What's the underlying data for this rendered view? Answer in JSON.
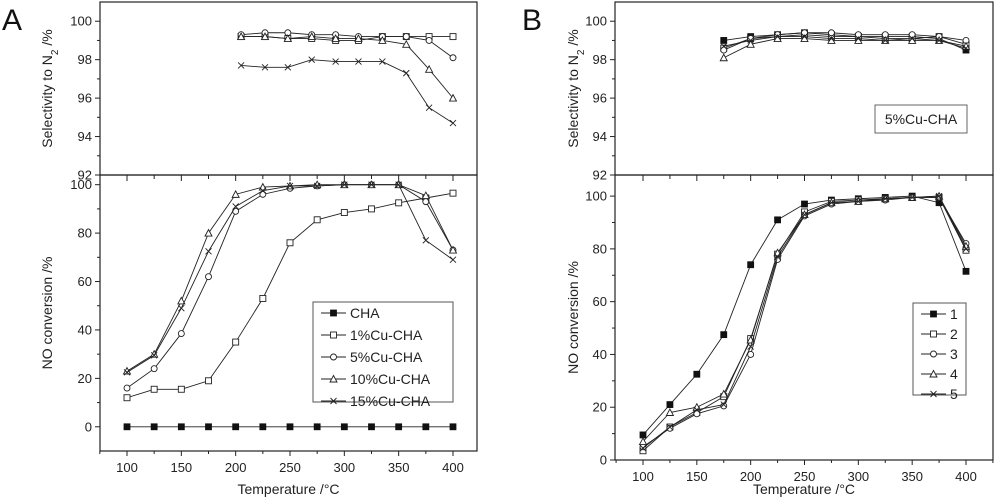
{
  "chart_data": [
    {
      "panel": "A",
      "type": "line",
      "subplots": [
        {
          "position": "top",
          "ylabel": "Selectivity to N2 /%",
          "ylim": [
            92,
            101
          ],
          "yticks": [
            92,
            94,
            96,
            98,
            100
          ],
          "x": [
            205,
            227,
            248,
            270,
            292,
            313,
            335,
            357,
            378,
            400
          ],
          "series": [
            {
              "name": "1%Cu-CHA",
              "marker": "square-open",
              "values": [
                99.2,
                99.2,
                99.1,
                99.1,
                99.0,
                99.0,
                99.2,
                99.2,
                99.2,
                99.2
              ]
            },
            {
              "name": "5%Cu-CHA",
              "marker": "circle-open",
              "values": [
                99.3,
                99.4,
                99.4,
                99.3,
                99.3,
                99.2,
                99.2,
                99.2,
                99.0,
                98.1
              ]
            },
            {
              "name": "10%Cu-CHA",
              "marker": "triangle-open",
              "values": [
                99.2,
                99.2,
                99.1,
                99.2,
                99.1,
                99.1,
                99.0,
                98.8,
                97.5,
                96.0
              ]
            },
            {
              "name": "15%Cu-CHA",
              "marker": "cross",
              "values": [
                97.7,
                97.6,
                97.6,
                98.0,
                97.9,
                97.9,
                97.9,
                97.3,
                95.5,
                94.7
              ]
            }
          ]
        },
        {
          "position": "bottom",
          "ylabel": "NO conversion /%",
          "ylim": [
            -10,
            104
          ],
          "yticks": [
            0,
            20,
            40,
            60,
            80,
            100
          ],
          "x": [
            100,
            125,
            150,
            175,
            200,
            225,
            250,
            275,
            300,
            325,
            350,
            375,
            400
          ],
          "series": [
            {
              "name": "CHA",
              "marker": "square-filled",
              "values": [
                0,
                0,
                0,
                0,
                0,
                0,
                0,
                0,
                0,
                0,
                0,
                0,
                0
              ]
            },
            {
              "name": "1%Cu-CHA",
              "marker": "square-open",
              "values": [
                12,
                15.5,
                15.5,
                19,
                35,
                53,
                76,
                85.5,
                88.5,
                90,
                92.5,
                94.5,
                96.5
              ]
            },
            {
              "name": "5%Cu-CHA",
              "marker": "circle-open",
              "values": [
                16,
                24,
                38.5,
                62,
                89,
                96,
                98.5,
                99.5,
                100,
                100,
                100,
                93,
                73
              ]
            },
            {
              "name": "10%Cu-CHA",
              "marker": "triangle-open",
              "values": [
                23,
                30,
                52,
                80,
                96,
                99,
                99.5,
                100,
                100,
                100,
                100,
                95.5,
                73
              ]
            },
            {
              "name": "15%Cu-CHA",
              "marker": "cross",
              "values": [
                22.5,
                29.5,
                49,
                72.5,
                91,
                97.5,
                99.5,
                99.5,
                100,
                100,
                100,
                77,
                69
              ]
            }
          ]
        }
      ],
      "xlabel": "Temperature /°C",
      "xlim": [
        75,
        425
      ],
      "xticks": [
        100,
        150,
        200,
        250,
        300,
        350,
        400
      ],
      "legend": {
        "placement": "bottom-right",
        "entries": [
          "CHA",
          "1%Cu-CHA",
          "5%Cu-CHA",
          "10%Cu-CHA",
          "15%Cu-CHA"
        ]
      }
    },
    {
      "panel": "B",
      "type": "line",
      "annotation": "5%Cu-CHA",
      "subplots": [
        {
          "position": "top",
          "ylabel": "Selectivity to N2 /%",
          "ylim": [
            92,
            101
          ],
          "yticks": [
            92,
            94,
            96,
            98,
            100
          ],
          "x": [
            175,
            200,
            225,
            250,
            275,
            300,
            325,
            350,
            375,
            400
          ],
          "series": [
            {
              "name": "1",
              "marker": "square-filled",
              "values": [
                99.0,
                99.2,
                99.3,
                99.4,
                99.3,
                99.2,
                99.2,
                99.2,
                99.1,
                98.5
              ]
            },
            {
              "name": "2",
              "marker": "square-open",
              "values": [
                98.6,
                99.1,
                99.2,
                99.3,
                99.2,
                99.2,
                99.1,
                99.1,
                99.2,
                98.8
              ]
            },
            {
              "name": "3",
              "marker": "circle-open",
              "values": [
                98.5,
                99.1,
                99.3,
                99.4,
                99.4,
                99.3,
                99.3,
                99.3,
                99.2,
                99.0
              ]
            },
            {
              "name": "4",
              "marker": "triangle-open",
              "values": [
                98.1,
                98.8,
                99.1,
                99.1,
                99.0,
                99.0,
                99.0,
                99.0,
                99.0,
                98.7
              ]
            },
            {
              "name": "5",
              "marker": "cross",
              "values": [
                98.7,
                99.0,
                99.2,
                99.2,
                99.1,
                99.1,
                99.0,
                99.1,
                99.0,
                98.6
              ]
            }
          ]
        },
        {
          "position": "bottom",
          "ylabel": "NO conversion /%",
          "ylim": [
            0,
            108
          ],
          "yticks": [
            0,
            20,
            40,
            60,
            80,
            100
          ],
          "x": [
            100,
            125,
            150,
            175,
            200,
            225,
            250,
            275,
            300,
            325,
            350,
            375,
            400
          ],
          "series": [
            {
              "name": "1",
              "marker": "square-filled",
              "values": [
                9.5,
                21,
                32.5,
                47.5,
                74,
                91,
                97,
                98.5,
                99,
                99.5,
                100,
                97.5,
                71.5
              ]
            },
            {
              "name": "2",
              "marker": "square-open",
              "values": [
                3.5,
                12.5,
                18,
                24,
                46,
                78,
                94,
                98,
                98.5,
                99,
                99.5,
                99.5,
                79.5
              ]
            },
            {
              "name": "3",
              "marker": "circle-open",
              "values": [
                5,
                12,
                17.5,
                20.5,
                40,
                76,
                92.5,
                97,
                98,
                98.5,
                99.5,
                99.5,
                82
              ]
            },
            {
              "name": "4",
              "marker": "triangle-open",
              "values": [
                7,
                18,
                20,
                25,
                45.5,
                78.5,
                93,
                97.5,
                98,
                99,
                99.5,
                100,
                81
              ]
            },
            {
              "name": "5",
              "marker": "cross",
              "values": [
                4.5,
                12.5,
                19,
                21,
                43,
                77,
                93,
                97.5,
                98,
                99,
                99.5,
                100,
                80
              ]
            }
          ]
        }
      ],
      "xlabel": "Temperature /°C",
      "xlim": [
        75,
        425
      ],
      "xticks": [
        100,
        150,
        200,
        250,
        300,
        350,
        400
      ],
      "legend": {
        "placement": "bottom-right",
        "entries": [
          "1",
          "2",
          "3",
          "4",
          "5"
        ]
      }
    }
  ]
}
